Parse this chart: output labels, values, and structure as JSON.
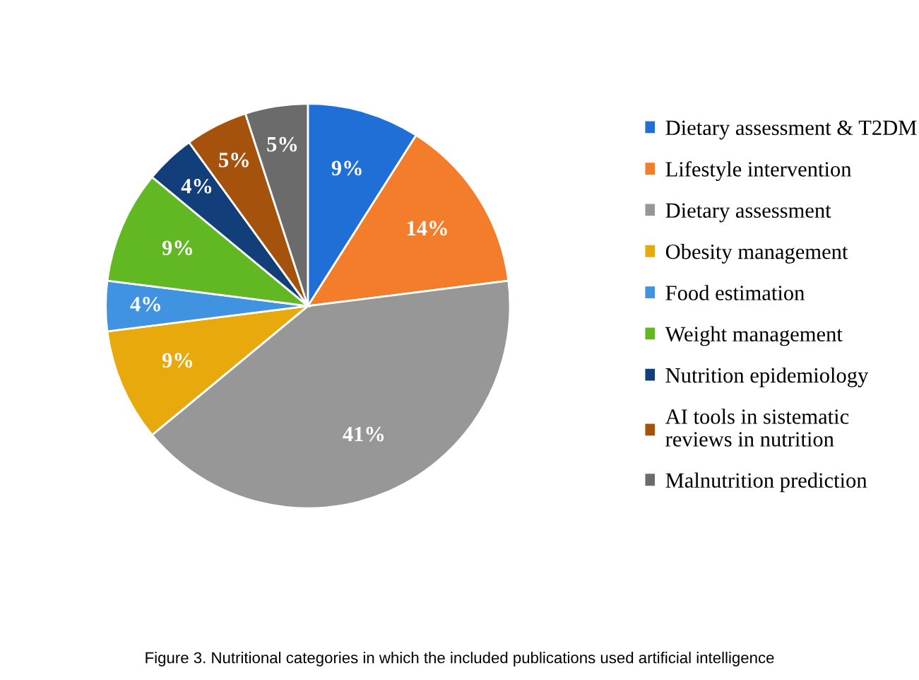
{
  "chart_data": {
    "type": "pie",
    "categories": [
      "Dietary assessment & T2DM",
      "Lifestyle intervention",
      "Dietary assessment",
      "Obesity management",
      "Food estimation",
      "Weight management",
      "Nutrition epidemiology",
      "AI tools in sistematic reviews in nutrition",
      "Malnutrition prediction"
    ],
    "values": [
      9,
      14,
      41,
      9,
      4,
      9,
      4,
      5,
      5
    ],
    "colors": [
      "#1f6fd6",
      "#f47d2c",
      "#979797",
      "#e8a90c",
      "#3f93e0",
      "#62b823",
      "#123f7a",
      "#a4520c",
      "#6b6b6b"
    ],
    "value_labels": [
      "9%",
      "14%",
      "41%",
      "9%",
      "4%",
      "9%",
      "4%",
      "5%",
      "5%"
    ],
    "legend": "right",
    "annotations": [
      "Figure 3. Nutritional categories in which the included publications used artificial intelligence"
    ]
  }
}
